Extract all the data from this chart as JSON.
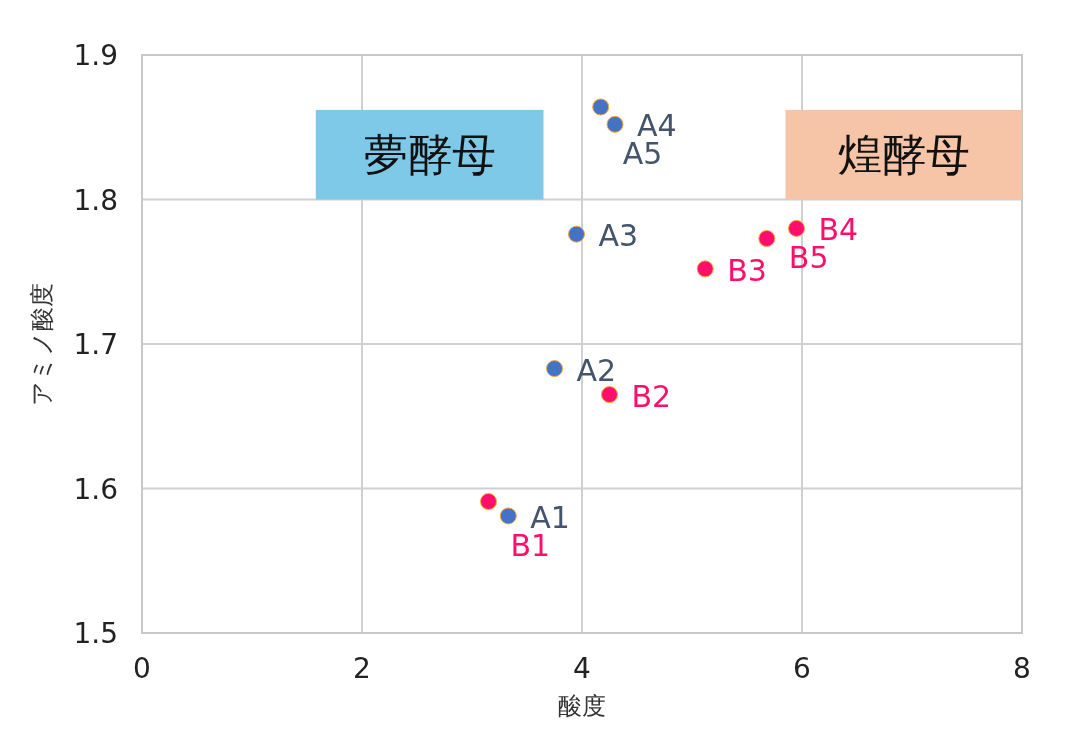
{
  "chart_data": {
    "type": "scatter",
    "xlabel": "酸度",
    "ylabel": "アミノ酸度",
    "xlim": [
      0,
      8
    ],
    "xticks": [
      0,
      2,
      4,
      6,
      8
    ],
    "ylim": [
      1.5,
      1.9
    ],
    "yticks": [
      {
        "value": 1.5,
        "label": "1.5"
      },
      {
        "value": 1.6,
        "label": "1.6"
      },
      {
        "value": 1.7,
        "label": "1.7"
      },
      {
        "value": 1.8,
        "label": "1.8"
      },
      {
        "value": 1.9,
        "label": "1.9"
      }
    ],
    "grid": true,
    "marker": "circle",
    "annotations": [
      "夢酵母",
      "煌酵母"
    ],
    "series": [
      {
        "color": "#4472c4",
        "x": [
          3.33,
          3.75,
          3.95,
          4.3,
          4.17
        ],
        "values": [
          1.581,
          1.683,
          1.776,
          1.852,
          1.864
        ],
        "value_labels": [
          "A1",
          "A2",
          "A3",
          "A4",
          "A5"
        ]
      },
      {
        "color": "#ff0f6b",
        "x": [
          3.15,
          4.25,
          5.12,
          5.95,
          5.68
        ],
        "values": [
          1.591,
          1.665,
          1.752,
          1.78,
          1.773
        ],
        "value_labels": [
          "B1",
          "B2",
          "B3",
          "B4",
          "B5"
        ]
      }
    ]
  }
}
